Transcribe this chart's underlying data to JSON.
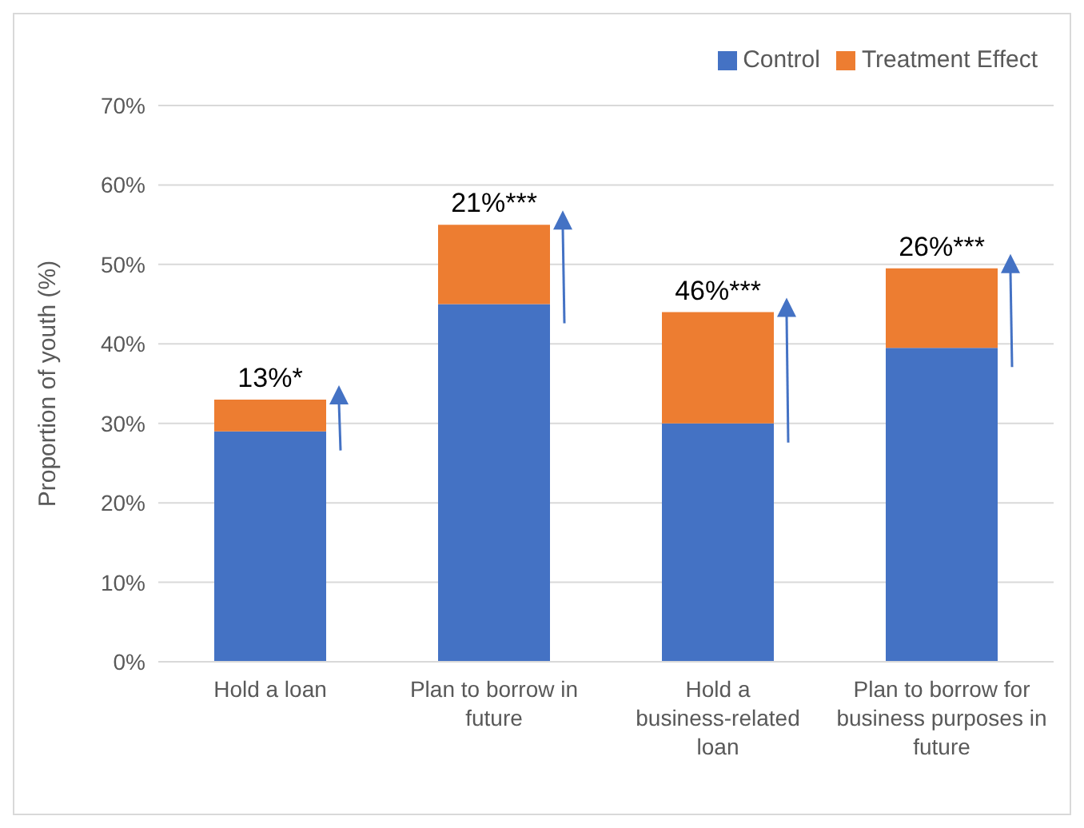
{
  "chart_data": {
    "type": "bar",
    "stacked": true,
    "categories": [
      "Hold a loan",
      "Plan to borrow in future",
      "Hold a business-related loan",
      "Plan to borrow for business purposes in future"
    ],
    "series": [
      {
        "name": "Control",
        "color": "#4472c4",
        "values": [
          29,
          45,
          30,
          39.5
        ]
      },
      {
        "name": "Treatment Effect",
        "color": "#ed7d31",
        "values": [
          4,
          10,
          14,
          10
        ]
      }
    ],
    "ylabel": "Proportion of youth (%)",
    "ylim": [
      0,
      70
    ],
    "yticks": [
      {
        "value": 0,
        "label": "0%"
      },
      {
        "value": 10,
        "label": "10%"
      },
      {
        "value": 20,
        "label": "20%"
      },
      {
        "value": 30,
        "label": "30%"
      },
      {
        "value": 40,
        "label": "40%"
      },
      {
        "value": 50,
        "label": "50%"
      },
      {
        "value": 60,
        "label": "60%"
      },
      {
        "value": 70,
        "label": "70%"
      }
    ],
    "grid": "y",
    "legend": "top right",
    "annotations": [
      {
        "text": "13%*",
        "x": "Hold a loan",
        "y": 33
      },
      {
        "text": "21%***",
        "x": "Plan to borrow in future",
        "y": 55
      },
      {
        "text": "46%***",
        "x": "Hold a business-related loan",
        "y": 44
      },
      {
        "text": "26%***",
        "x": "Plan to borrow for business purposes in future",
        "y": 49.5
      }
    ]
  }
}
